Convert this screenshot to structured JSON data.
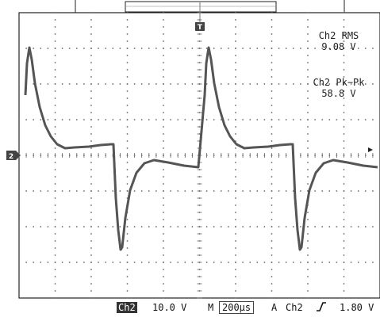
{
  "measurements": {
    "rms_label": "Ch2 RMS",
    "rms_value": "9.08 V",
    "pkpk_label": "Ch2 Pk−Pk",
    "pkpk_value": "58.8 V"
  },
  "markers": {
    "channel_marker": "2",
    "trigger_marker": "T"
  },
  "status_bar": {
    "channel": "Ch2",
    "volts_per_div": "10.0 V",
    "mode": "M",
    "time_per_div": "200µs",
    "trigger_mode": "A",
    "trigger_channel": "Ch2",
    "trigger_slope_icon": "rising-edge-icon",
    "trigger_level": "1.80 V"
  },
  "colors": {
    "trace": "#555555",
    "grid_dots": "#666666",
    "marker_bg": "#444444"
  }
}
